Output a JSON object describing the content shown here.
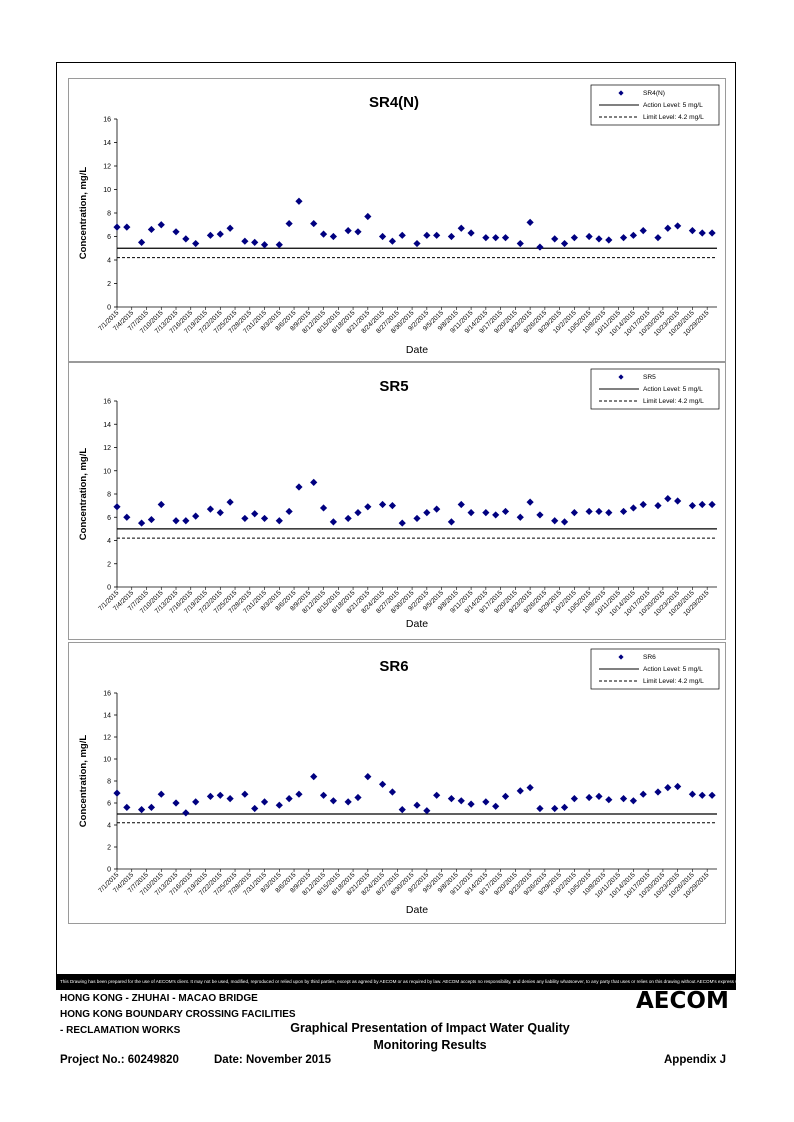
{
  "x_dates": [
    "7/1/2015",
    "7/3/2015",
    "7/6/2015",
    "7/8/2015",
    "7/10/2015",
    "7/13/2015",
    "7/15/2015",
    "7/17/2015",
    "7/20/2015",
    "7/22/2015",
    "7/24/2015",
    "7/27/2015",
    "7/29/2015",
    "7/31/2015",
    "8/3/2015",
    "8/5/2015",
    "8/7/2015",
    "8/10/2015",
    "8/12/2015",
    "8/14/2015",
    "8/17/2015",
    "8/19/2015",
    "8/21/2015",
    "8/24/2015",
    "8/26/2015",
    "8/28/2015",
    "8/31/2015",
    "9/2/2015",
    "9/4/2015",
    "9/7/2015",
    "9/9/2015",
    "9/11/2015",
    "9/14/2015",
    "9/16/2015",
    "9/18/2015",
    "9/21/2015",
    "9/23/2015",
    "9/25/2015",
    "9/28/2015",
    "9/30/2015",
    "10/2/2015",
    "10/5/2015",
    "10/7/2015",
    "10/9/2015",
    "10/12/2015",
    "10/14/2015",
    "10/16/2015",
    "10/19/2015",
    "10/21/2015",
    "10/23/2015",
    "10/26/2015",
    "10/28/2015",
    "10/30/2015"
  ],
  "chart_data": [
    {
      "type": "scatter",
      "title": "SR4(N)",
      "xlabel": "Date",
      "ylabel": "Concentration, mg/L",
      "xlim": [
        "7/1/2015",
        "10/31/2015"
      ],
      "ylim": [
        0,
        16
      ],
      "yticks": [
        0,
        2,
        4,
        6,
        8,
        10,
        12,
        14,
        16
      ],
      "xticks": [
        "7/1/2015",
        "7/4/2015",
        "7/7/2015",
        "7/10/2015",
        "7/13/2015",
        "7/16/2015",
        "7/19/2015",
        "7/22/2015",
        "7/25/2015",
        "7/28/2015",
        "7/31/2015",
        "8/3/2015",
        "8/6/2015",
        "8/9/2015",
        "8/12/2015",
        "8/15/2015",
        "8/18/2015",
        "8/21/2015",
        "8/24/2015",
        "8/27/2015",
        "8/30/2015",
        "9/2/2015",
        "9/5/2015",
        "9/8/2015",
        "9/11/2015",
        "9/14/2015",
        "9/17/2015",
        "9/20/2015",
        "9/23/2015",
        "9/26/2015",
        "9/29/2015",
        "10/2/2015",
        "10/5/2015",
        "10/8/2015",
        "10/11/2015",
        "10/14/2015",
        "10/17/2015",
        "10/20/2015",
        "10/23/2015",
        "10/26/2015",
        "10/29/2015"
      ],
      "legend_position": "top-right",
      "series": [
        {
          "name": "SR4(N)",
          "marker": "diamond",
          "color": "#000080",
          "y": [
            6.8,
            6.8,
            5.5,
            6.6,
            7.0,
            6.4,
            5.8,
            5.4,
            6.1,
            6.2,
            6.7,
            5.6,
            5.5,
            5.3,
            5.3,
            7.1,
            9.0,
            7.1,
            6.2,
            6.0,
            6.5,
            6.4,
            7.7,
            6.0,
            5.6,
            6.1,
            5.4,
            6.1,
            6.1,
            6.0,
            6.7,
            6.3,
            5.9,
            5.9,
            5.9,
            5.4,
            7.2,
            5.1,
            5.8,
            5.4,
            5.9,
            6.0,
            5.8,
            5.7,
            5.9,
            6.1,
            6.5,
            5.9,
            6.7,
            6.9,
            6.5,
            6.3,
            6.3
          ]
        },
        {
          "name": "Action Level: 5 mg/L",
          "line": "solid",
          "value": 5
        },
        {
          "name": "Limit Level: 4.2 mg/L",
          "line": "dashed",
          "value": 4.2
        }
      ]
    },
    {
      "type": "scatter",
      "title": "SR5",
      "xlabel": "Date",
      "ylabel": "Concentration, mg/L",
      "xlim": [
        "7/1/2015",
        "10/31/2015"
      ],
      "ylim": [
        0,
        16
      ],
      "yticks": [
        0,
        2,
        4,
        6,
        8,
        10,
        12,
        14,
        16
      ],
      "xticks": [
        "7/1/2015",
        "7/4/2015",
        "7/7/2015",
        "7/10/2015",
        "7/13/2015",
        "7/16/2015",
        "7/19/2015",
        "7/22/2015",
        "7/25/2015",
        "7/28/2015",
        "7/31/2015",
        "8/3/2015",
        "8/6/2015",
        "8/9/2015",
        "8/12/2015",
        "8/15/2015",
        "8/18/2015",
        "8/21/2015",
        "8/24/2015",
        "8/27/2015",
        "8/30/2015",
        "9/2/2015",
        "9/5/2015",
        "9/8/2015",
        "9/11/2015",
        "9/14/2015",
        "9/17/2015",
        "9/20/2015",
        "9/23/2015",
        "9/26/2015",
        "9/29/2015",
        "10/2/2015",
        "10/5/2015",
        "10/8/2015",
        "10/11/2015",
        "10/14/2015",
        "10/17/2015",
        "10/20/2015",
        "10/23/2015",
        "10/26/2015",
        "10/29/2015"
      ],
      "legend_position": "top-right",
      "series": [
        {
          "name": "SR5",
          "marker": "diamond",
          "color": "#000080",
          "y": [
            6.9,
            6.0,
            5.5,
            5.8,
            7.1,
            5.7,
            5.7,
            6.1,
            6.7,
            6.4,
            7.3,
            5.9,
            6.3,
            5.9,
            5.7,
            6.5,
            8.6,
            9.0,
            6.8,
            5.6,
            5.9,
            6.4,
            6.9,
            7.1,
            7.0,
            5.5,
            5.9,
            6.4,
            6.7,
            5.6,
            7.1,
            6.4,
            6.4,
            6.2,
            6.5,
            6.0,
            7.3,
            6.2,
            5.7,
            5.6,
            6.4,
            6.5,
            6.5,
            6.4,
            6.5,
            6.8,
            7.1,
            7.0,
            7.6,
            7.4,
            7.0,
            7.1,
            7.1
          ]
        },
        {
          "name": "Action Level: 5 mg/L",
          "line": "solid",
          "value": 5
        },
        {
          "name": "Limit Level: 4.2 mg/L",
          "line": "dashed",
          "value": 4.2
        }
      ]
    },
    {
      "type": "scatter",
      "title": "SR6",
      "xlabel": "Date",
      "ylabel": "Concentration, mg/L",
      "xlim": [
        "7/1/2015",
        "10/31/2015"
      ],
      "ylim": [
        0,
        16
      ],
      "yticks": [
        0,
        2,
        4,
        6,
        8,
        10,
        12,
        14,
        16
      ],
      "xticks": [
        "7/1/2015",
        "7/4/2015",
        "7/7/2015",
        "7/10/2015",
        "7/13/2015",
        "7/16/2015",
        "7/19/2015",
        "7/22/2015",
        "7/25/2015",
        "7/28/2015",
        "7/31/2015",
        "8/3/2015",
        "8/6/2015",
        "8/9/2015",
        "8/12/2015",
        "8/15/2015",
        "8/18/2015",
        "8/21/2015",
        "8/24/2015",
        "8/27/2015",
        "8/30/2015",
        "9/2/2015",
        "9/5/2015",
        "9/8/2015",
        "9/11/2015",
        "9/14/2015",
        "9/17/2015",
        "9/20/2015",
        "9/23/2015",
        "9/26/2015",
        "9/29/2015",
        "10/2/2015",
        "10/5/2015",
        "10/8/2015",
        "10/11/2015",
        "10/14/2015",
        "10/17/2015",
        "10/20/2015",
        "10/23/2015",
        "10/26/2015",
        "10/29/2015"
      ],
      "legend_position": "top-right",
      "series": [
        {
          "name": "SR6",
          "marker": "diamond",
          "color": "#000080",
          "y": [
            6.9,
            5.6,
            5.4,
            5.6,
            6.8,
            6.0,
            5.1,
            6.1,
            6.6,
            6.7,
            6.4,
            6.8,
            5.5,
            6.1,
            5.8,
            6.4,
            6.8,
            8.4,
            6.7,
            6.2,
            6.1,
            6.5,
            8.4,
            7.7,
            7.0,
            5.4,
            5.8,
            5.3,
            6.7,
            6.4,
            6.2,
            5.9,
            6.1,
            5.7,
            6.6,
            7.1,
            7.4,
            5.5,
            5.5,
            5.6,
            6.4,
            6.5,
            6.6,
            6.3,
            6.4,
            6.2,
            6.8,
            7.0,
            7.4,
            7.5,
            6.8,
            6.7,
            6.7
          ]
        },
        {
          "name": "Action Level: 5 mg/L",
          "line": "solid",
          "value": 5
        },
        {
          "name": "Limit Level: 4.2 mg/L",
          "line": "dashed",
          "value": 4.2
        }
      ]
    }
  ],
  "disclaimer": "This Drawing has been prepared for the use of AECOM's client. It may not be used, modified, reproduced or relied upon by third parties, except as agreed by AECOM or as required by law. AECOM accepts no responsibility, and denies any liability whatsoever, to any party that uses or relies on this drawing without AECOM's express written consent.",
  "footer": {
    "project_line1": "HONG KONG - ZHUHAI - MACAO BRIDGE",
    "project_line2": "HONG KONG BOUNDARY CROSSING FACILITIES",
    "project_line3": "- RECLAMATION WORKS",
    "title_line1": "Graphical Presentation of Impact Water Quality",
    "title_line2": "Monitoring Results",
    "project_no": "Project No.: 60249820",
    "date": "Date: November 2015",
    "appendix": "Appendix J",
    "logo": "AECOM"
  }
}
